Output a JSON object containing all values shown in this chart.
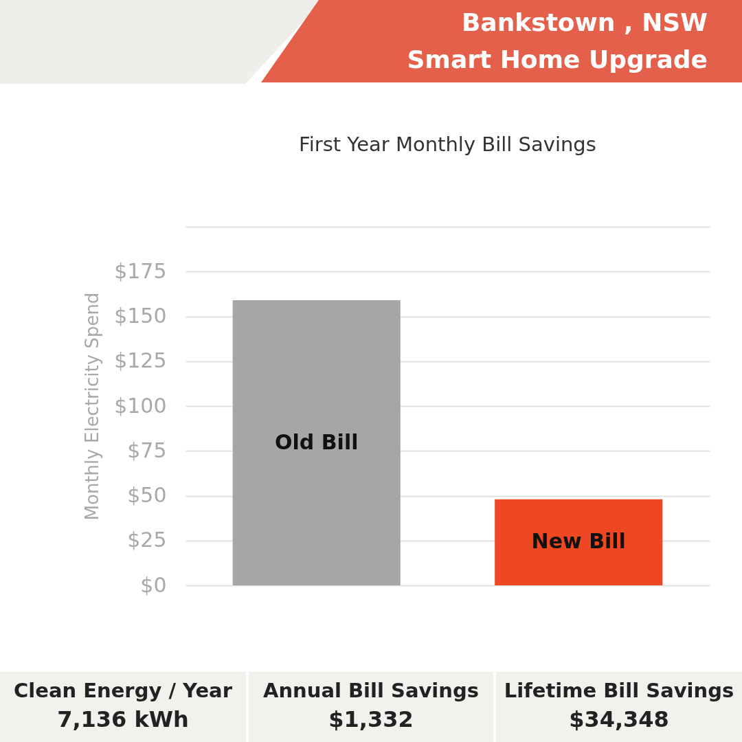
{
  "chart_data": {
    "type": "bar",
    "title": "First Year Monthly Bill Savings",
    "ylabel": "Monthly Electricity Spend",
    "categories": [
      "Old Bill",
      "New Bill"
    ],
    "values": [
      159,
      48
    ],
    "colors": [
      "#a6a6a6",
      "#ee4823"
    ],
    "ylim": [
      0,
      200
    ],
    "yticks": [
      {
        "value": 0,
        "label": "$0"
      },
      {
        "value": 25,
        "label": "$25"
      },
      {
        "value": 50,
        "label": "$50"
      },
      {
        "value": 75,
        "label": "$75"
      },
      {
        "value": 100,
        "label": "$100"
      },
      {
        "value": 125,
        "label": "$125"
      },
      {
        "value": 150,
        "label": "$150"
      },
      {
        "value": 175,
        "label": "$175"
      },
      {
        "value": 200,
        "label": null
      }
    ],
    "grid": "y",
    "tick_labels": "y",
    "legend": false,
    "annotations": [
      "Bankstown , NSW",
      "Smart Home Upgrade",
      "Clean Energy / Year",
      "7,136 kWh",
      "Annual Bill Savings",
      "$1,332",
      "Lifetime Bill Savings",
      "$34,348"
    ]
  }
}
